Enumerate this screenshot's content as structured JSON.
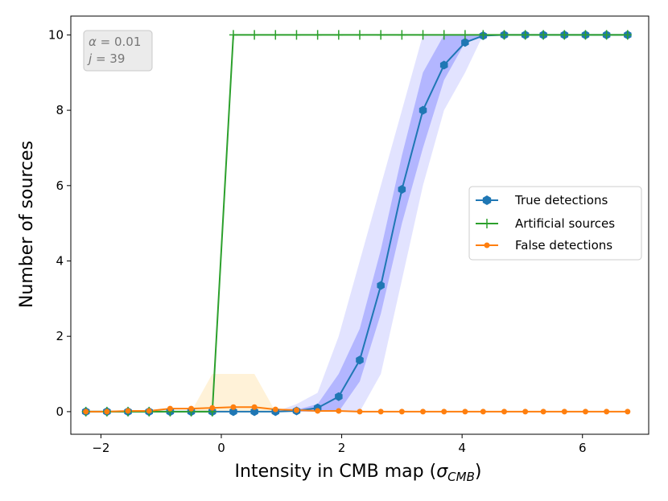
{
  "chart_data": {
    "type": "line",
    "xlabel": "Intensity in CMB map (σ_CMB)",
    "xlabel_main": "Intensity in CMB map (",
    "xlabel_sigma": "σ",
    "xlabel_sub": "CMB",
    "xlabel_close": ")",
    "ylabel": "Number of sources",
    "xlim": [
      -2.5,
      7.1
    ],
    "ylim": [
      -0.6,
      10.5
    ],
    "xticks": [
      -2,
      0,
      2,
      4,
      6
    ],
    "xtick_labels": [
      "−2",
      "0",
      "2",
      "4",
      "6"
    ],
    "yticks": [
      0,
      2,
      4,
      6,
      8,
      10
    ],
    "ytick_labels": [
      "0",
      "2",
      "4",
      "6",
      "8",
      "10"
    ],
    "grid": false,
    "legend_position": "center-right",
    "annotation": {
      "line1_symbol": "α",
      "line1_value": " = 0.01",
      "line2_symbol": "j",
      "line2_value": " = 39"
    },
    "x": [
      -2.25,
      -1.9,
      -1.55,
      -1.2,
      -0.85,
      -0.5,
      -0.15,
      0.2,
      0.55,
      0.9,
      1.25,
      1.6,
      1.95,
      2.3,
      2.65,
      3.0,
      3.35,
      3.7,
      4.05,
      4.35,
      4.7,
      5.05,
      5.35,
      5.7,
      6.05,
      6.4,
      6.75
    ],
    "series": [
      {
        "name": "True detections",
        "color": "#1f77b4",
        "marker": "hexagon",
        "values": [
          0,
          0,
          0,
          0,
          0,
          0,
          0,
          0,
          0,
          0,
          0.02,
          0.1,
          0.4,
          1.37,
          3.35,
          5.9,
          8.0,
          9.2,
          9.8,
          9.98,
          10,
          10,
          10,
          10,
          10,
          10,
          10
        ],
        "band_inner_lower": [
          0,
          0,
          0,
          0,
          0,
          0,
          0,
          0,
          0,
          0,
          0,
          0,
          0,
          0.8,
          2.6,
          5.0,
          7.0,
          8.8,
          9.8,
          10,
          10,
          10,
          10,
          10,
          10,
          10,
          10
        ],
        "band_inner_upper": [
          0,
          0,
          0,
          0,
          0,
          0,
          0,
          0,
          0,
          0,
          0.05,
          0.2,
          1.0,
          2.2,
          4.3,
          6.8,
          9.0,
          10,
          10,
          10,
          10,
          10,
          10,
          10,
          10,
          10,
          10
        ],
        "band_outer_lower": [
          0,
          0,
          0,
          0,
          0,
          0,
          0,
          0,
          0,
          0,
          0,
          0,
          0,
          0,
          1.0,
          3.5,
          6.0,
          8.0,
          9.0,
          10,
          10,
          10,
          10,
          10,
          10,
          10,
          10
        ],
        "band_outer_upper": [
          0,
          0,
          0,
          0,
          0,
          0,
          0,
          0,
          0,
          0,
          0.2,
          0.5,
          2.0,
          4.0,
          6.0,
          8.0,
          10,
          10,
          10,
          10,
          10,
          10,
          10,
          10,
          10,
          10,
          10
        ]
      },
      {
        "name": "Artificial sources",
        "color": "#2ca02c",
        "marker": "plus",
        "values": [
          0,
          0,
          0,
          0,
          0,
          0,
          0,
          10,
          10,
          10,
          10,
          10,
          10,
          10,
          10,
          10,
          10,
          10,
          10,
          10,
          10,
          10,
          10,
          10,
          10,
          10,
          10
        ]
      },
      {
        "name": "False detections",
        "color": "#ff7f0e",
        "marker": "circle",
        "values": [
          0,
          0,
          0.02,
          0.02,
          0.08,
          0.08,
          0.1,
          0.12,
          0.12,
          0.06,
          0.04,
          0.02,
          0.02,
          0,
          0,
          0,
          0,
          0,
          0,
          0,
          0,
          0,
          0,
          0,
          0,
          0,
          0
        ],
        "band_upper": [
          0,
          0,
          0,
          0,
          0,
          0,
          1,
          1,
          1,
          0,
          0,
          0,
          0,
          0,
          0,
          0,
          0,
          0,
          0,
          0,
          0,
          0,
          0,
          0,
          0,
          0,
          0
        ]
      }
    ]
  }
}
